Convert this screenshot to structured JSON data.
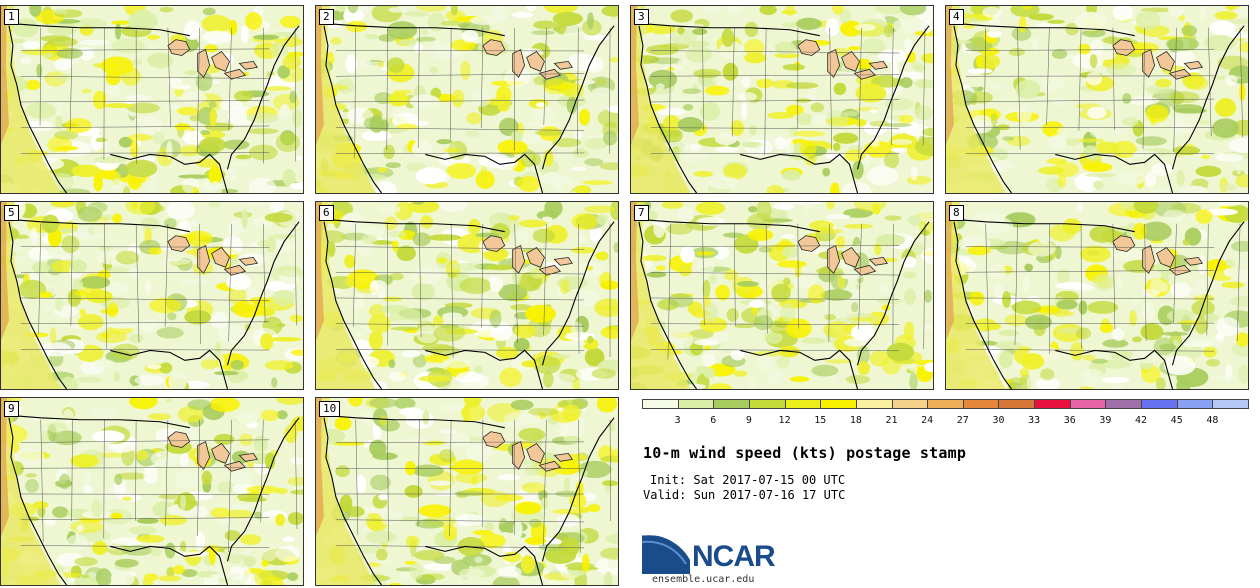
{
  "panels": [
    {
      "label": "1"
    },
    {
      "label": "2"
    },
    {
      "label": "3"
    },
    {
      "label": "4"
    },
    {
      "label": "5"
    },
    {
      "label": "6"
    },
    {
      "label": "7"
    },
    {
      "label": "8"
    },
    {
      "label": "9"
    },
    {
      "label": "10"
    }
  ],
  "legend": {
    "ticks": [
      "3",
      "6",
      "9",
      "12",
      "15",
      "18",
      "21",
      "24",
      "27",
      "30",
      "33",
      "36",
      "39",
      "42",
      "45",
      "48"
    ],
    "colors": [
      "#f5fbe4",
      "#dbeea8",
      "#a6cc5e",
      "#c2da3a",
      "#ecef1c",
      "#f8f200",
      "#faf0a0",
      "#f4d28a",
      "#f0ae58",
      "#e6883c",
      "#d87838",
      "#e8103c",
      "#e866a8",
      "#a070a8",
      "#6672f0",
      "#8aa0f2",
      "#b4c8f6"
    ]
  },
  "title": "10-m wind speed (kts) postage stamp",
  "init": "Init: Sat 2017-07-15 00 UTC",
  "valid": "Valid: Sun 2017-07-16 17 UTC",
  "logo": {
    "text": "NCAR",
    "color": "#1a4c8c"
  },
  "site": "ensemble.ucar.edu"
}
